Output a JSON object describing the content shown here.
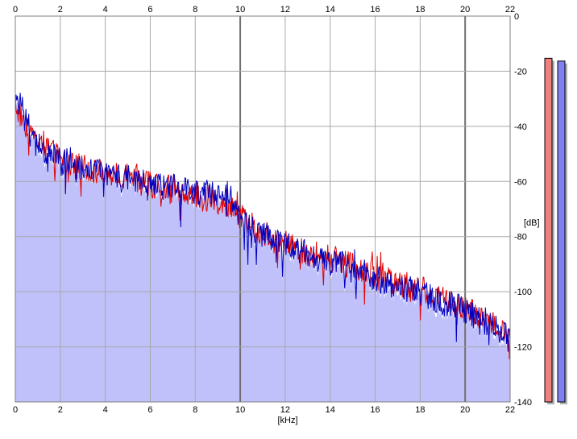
{
  "chart_data": {
    "type": "line",
    "xlabel": "[kHz]",
    "ylabel": "[dB]",
    "xlim": [
      0,
      22
    ],
    "ylim": [
      -140,
      0
    ],
    "x_ticks": [
      0,
      2,
      4,
      6,
      8,
      10,
      12,
      14,
      16,
      18,
      20,
      22
    ],
    "x_tick_labels": [
      "0",
      "2",
      "4",
      "6",
      "8",
      "10",
      "12",
      "14",
      "16",
      "18",
      "20",
      "22"
    ],
    "y_ticks": [
      0,
      -20,
      -40,
      -60,
      -80,
      -100,
      -120,
      -140
    ],
    "y_tick_labels": [
      "0",
      "-20",
      "-40",
      "-60",
      "-80",
      "-100",
      "-120",
      "-140"
    ],
    "grid": true,
    "background_fill_color": "#c0c0fa",
    "series": [
      {
        "color": "#e00000",
        "x": [
          0,
          0.5,
          1,
          1.5,
          2,
          2.5,
          3,
          3.5,
          4,
          4.5,
          5,
          5.5,
          6,
          6.5,
          7,
          7.5,
          8,
          8.5,
          9,
          9.5,
          10,
          10.5,
          11,
          11.5,
          12,
          12.5,
          13,
          13.5,
          14,
          14.5,
          15,
          15.5,
          16,
          16.5,
          17,
          17.5,
          18,
          18.5,
          19,
          19.5,
          20,
          20.5,
          21,
          21.5,
          22
        ],
        "y": [
          -32,
          -40,
          -44,
          -48,
          -52,
          -54,
          -55,
          -56,
          -57,
          -58,
          -59,
          -60,
          -61,
          -62,
          -63,
          -64,
          -65,
          -66,
          -67,
          -68,
          -73,
          -76,
          -78,
          -80,
          -82,
          -84,
          -86,
          -87,
          -88,
          -89,
          -91,
          -92,
          -94,
          -96,
          -97,
          -98,
          -99,
          -101,
          -103,
          -104,
          -106,
          -108,
          -110,
          -113,
          -116
        ]
      },
      {
        "color": "#0000c0",
        "x": [
          0,
          0.5,
          1,
          1.5,
          2,
          2.5,
          3,
          3.5,
          4,
          4.5,
          5,
          5.5,
          6,
          6.5,
          7,
          7.5,
          8,
          8.5,
          9,
          9.5,
          10,
          10.5,
          11,
          11.5,
          12,
          12.5,
          13,
          13.5,
          14,
          14.5,
          15,
          15.5,
          16,
          16.5,
          17,
          17.5,
          18,
          18.5,
          19,
          19.5,
          20,
          20.5,
          21,
          21.5,
          22
        ],
        "y": [
          -28,
          -38,
          -46,
          -50,
          -53,
          -55,
          -56,
          -57,
          -57,
          -58,
          -59,
          -60,
          -60,
          -61,
          -62,
          -63,
          -64,
          -64,
          -63,
          -64,
          -74,
          -77,
          -79,
          -81,
          -83,
          -85,
          -87,
          -88,
          -89,
          -90,
          -92,
          -93,
          -95,
          -97,
          -98,
          -99,
          -100,
          -102,
          -104,
          -105,
          -107,
          -109,
          -111,
          -114,
          -117
        ]
      }
    ],
    "level_meters": [
      {
        "color": "#f08080",
        "value": -8
      },
      {
        "color": "#8080f0",
        "value": -9
      }
    ]
  }
}
